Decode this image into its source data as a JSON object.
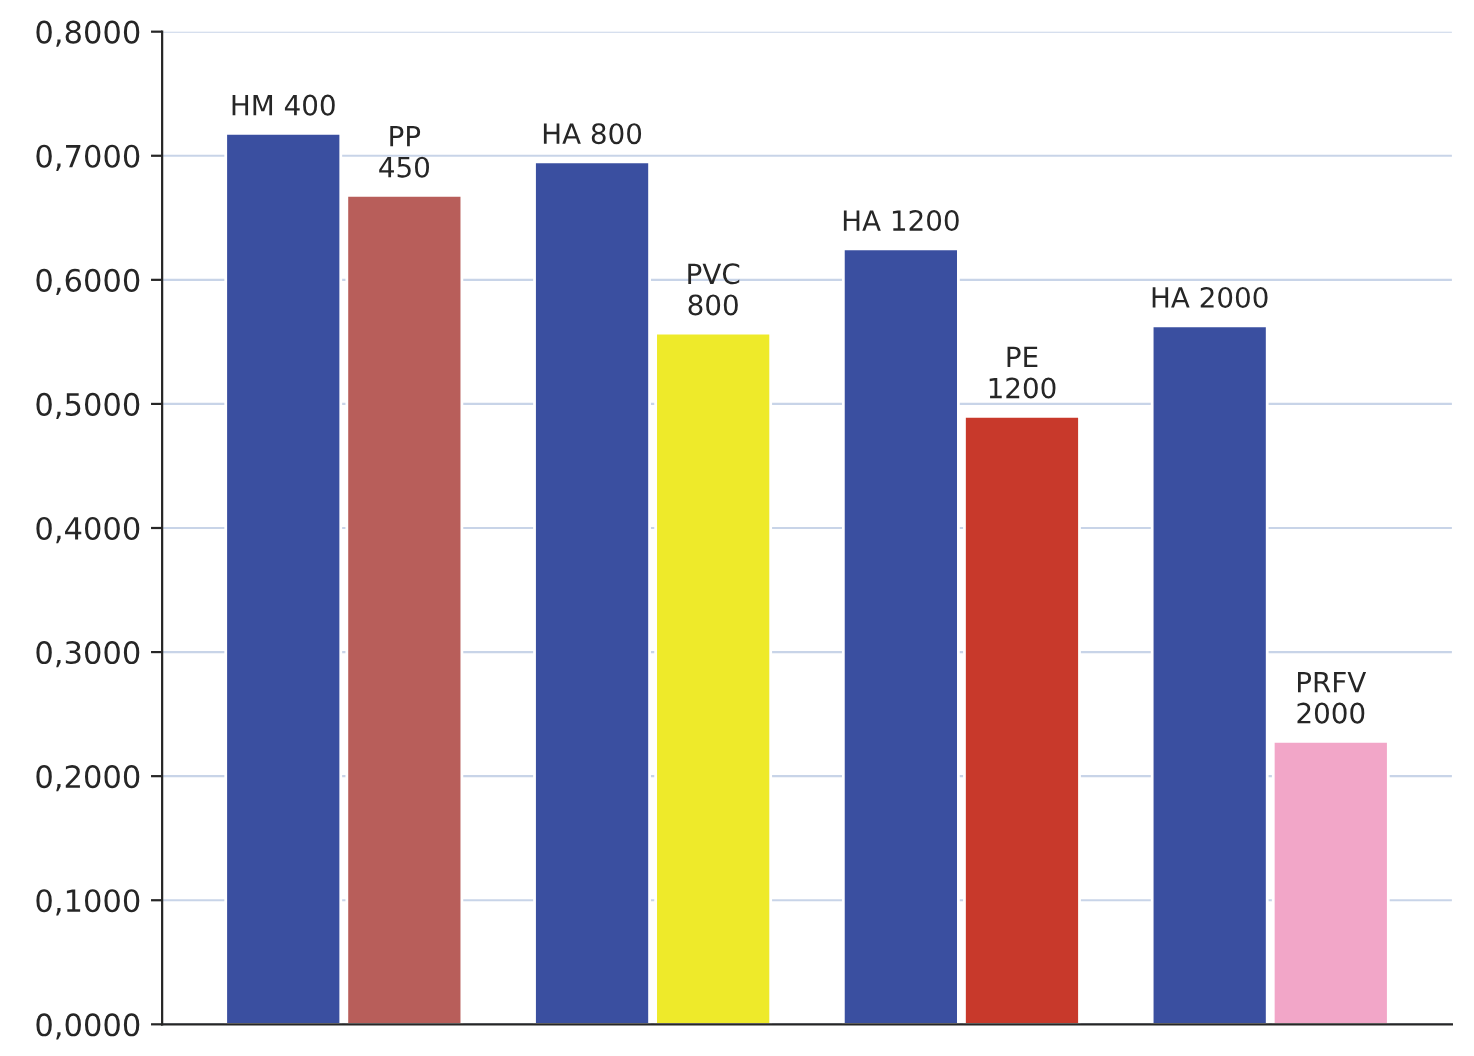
{
  "chart_data": {
    "type": "bar",
    "categories": [
      "HM 400",
      "PP\n450",
      "HA 800",
      "PVC\n800",
      "HA 1200",
      "PE\n1200",
      "HA 2000",
      "PRFV\n2000"
    ],
    "values": [
      0.718,
      0.668,
      0.695,
      0.557,
      0.625,
      0.49,
      0.563,
      0.228
    ],
    "colors": [
      "#3a4fa0",
      "#b85e5a",
      "#3a4fa0",
      "#eeea2a",
      "#3a4fa0",
      "#c8392b",
      "#3a4fa0",
      "#f2a6c8"
    ],
    "ylim": [
      0,
      0.8
    ],
    "yticks": [
      {
        "value": 0,
        "label": "0,0000"
      },
      {
        "value": 0.1,
        "label": "0,1000"
      },
      {
        "value": 0.2,
        "label": "0,2000"
      },
      {
        "value": 0.3,
        "label": "0,3000"
      },
      {
        "value": 0.4,
        "label": "0,4000"
      },
      {
        "value": 0.5,
        "label": "0,5000"
      },
      {
        "value": 0.6,
        "label": "0,6000"
      },
      {
        "value": 0.7,
        "label": "0,7000"
      },
      {
        "value": 0.8,
        "label": "0,8000"
      }
    ],
    "grid": "y"
  }
}
